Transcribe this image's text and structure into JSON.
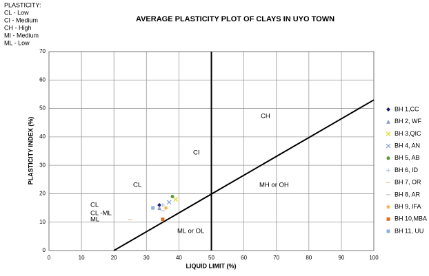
{
  "chart_data": {
    "type": "scatter",
    "title": "AVERAGE PLASTICITY PLOT OF CLAYS IN UYO TOWN",
    "notes": [
      "PLASTICITY:",
      "CL - Low",
      "CI - Medium",
      "CH - High",
      "MI - Medium",
      "ML - Low"
    ],
    "x_label": "LIQUID LIMIT (%)",
    "y_label": "PLASTICITY INDEX (%)",
    "xlim": [
      0,
      100
    ],
    "ylim": [
      0,
      70
    ],
    "xticks": [
      0,
      10,
      20,
      30,
      40,
      50,
      60,
      70,
      80,
      90,
      100
    ],
    "yticks": [
      0,
      10,
      20,
      30,
      40,
      50,
      60,
      70
    ],
    "grid": true,
    "zones": [
      "CH",
      "CI",
      "CL",
      "MH  or OH",
      "ML or OL",
      "CL",
      "CL -ML",
      "ML"
    ],
    "reference_lines": [
      {
        "x": [
          50,
          50
        ],
        "y": [
          0,
          70
        ]
      },
      {
        "x": [
          20,
          100
        ],
        "y": [
          0,
          53
        ]
      }
    ],
    "series": [
      {
        "name": "BH 1,CC",
        "color": "#1a1a6e",
        "marker": "diamond",
        "x": [
          34
        ],
        "y": [
          16
        ]
      },
      {
        "name": "BH 2, WF",
        "color": "#8a9cc8",
        "marker": "triangle",
        "x": [
          34
        ],
        "y": [
          15
        ]
      },
      {
        "name": "BH 3,QIC",
        "color": "#e0d820",
        "marker": "x",
        "x": [
          39
        ],
        "y": [
          18
        ]
      },
      {
        "name": "BH 4, AN",
        "color": "#7fa0d8",
        "marker": "x",
        "x": [
          37
        ],
        "y": [
          17
        ]
      },
      {
        "name": "BH 5, AB",
        "color": "#5a9a3c",
        "marker": "circle",
        "x": [
          38
        ],
        "y": [
          19
        ]
      },
      {
        "name": "BH 6, ID",
        "color": "#b8c4e0",
        "marker": "plus",
        "x": [
          35
        ],
        "y": [
          16
        ]
      },
      {
        "name": "BH 7, OR",
        "color": "#e8c0a8",
        "marker": "dash",
        "x": [
          25
        ],
        "y": [
          11
        ]
      },
      {
        "name": "BH 8, AR",
        "color": "#c0c0c0",
        "marker": "dash",
        "x": [
          35
        ],
        "y": [
          14
        ]
      },
      {
        "name": "BH 9, IFA",
        "color": "#f0b040",
        "marker": "star",
        "x": [
          36
        ],
        "y": [
          15
        ]
      },
      {
        "name": "BH 10,MBA",
        "color": "#e07020",
        "marker": "square",
        "x": [
          35
        ],
        "y": [
          11
        ]
      },
      {
        "name": "BH 11, UU",
        "color": "#90b0e0",
        "marker": "square",
        "x": [
          32
        ],
        "y": [
          15
        ]
      }
    ]
  }
}
